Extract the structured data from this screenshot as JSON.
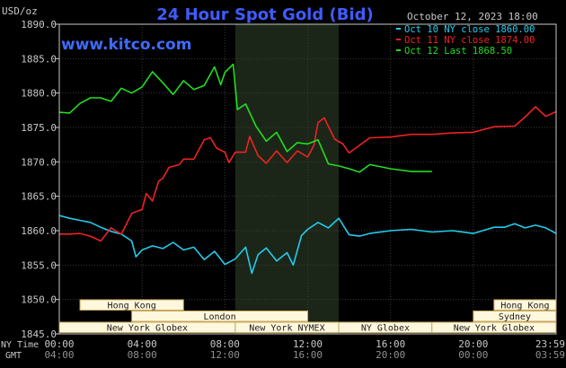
{
  "header": {
    "title": "24 Hour Spot Gold (Bid)",
    "timestamp": "October 12, 2023 18:00",
    "site": "www.kitco.com",
    "unit": "USD/oz"
  },
  "time_axis": {
    "ny_label": "NY Time",
    "gmt_label": "GMT",
    "ny_ticks": [
      "00:00",
      "04:00",
      "08:00",
      "12:00",
      "16:00",
      "20:00",
      "23:59"
    ],
    "gmt_ticks": [
      "04:00",
      "08:00",
      "12:00",
      "16:00",
      "20:00",
      "00:00",
      "03:59"
    ]
  },
  "markets": [
    {
      "name": "Hong Kong",
      "start": 1.0,
      "end": 6.0,
      "row": 0
    },
    {
      "name": "London",
      "start": 3.5,
      "end": 12.0,
      "row": 1
    },
    {
      "name": "New York Globex",
      "start": 0.0,
      "end": 8.5,
      "row": 2
    },
    {
      "name": "New York NYMEX",
      "start": 8.5,
      "end": 13.5,
      "row": 2
    },
    {
      "name": "NY Globex",
      "start": 13.5,
      "end": 18.0,
      "row": 2
    },
    {
      "name": "Hong Kong",
      "start": 21.0,
      "end": 24.0,
      "row": 0
    },
    {
      "name": "Sydney",
      "start": 20.0,
      "end": 24.0,
      "row": 1
    },
    {
      "name": "New York Globex",
      "start": 18.0,
      "end": 24.0,
      "row": 2
    }
  ],
  "colors": {
    "background": "#000000",
    "plot_bg": "#000000",
    "shade": "#1c2618",
    "grid": "#3a3a3a",
    "axis": "#c8c8c8",
    "title": "#3f5bff",
    "site": "#3f6bff",
    "market_fill": "#fff8dc",
    "market_border": "#c8a860",
    "market_text": "#1a1a1a"
  },
  "chart_data": {
    "type": "line",
    "ylim": [
      1845,
      1890
    ],
    "xlim": [
      0,
      24
    ],
    "yticks": [
      "1845.0",
      "1850.0",
      "1855.0",
      "1860.0",
      "1865.0",
      "1870.0",
      "1875.0",
      "1880.0",
      "1885.0",
      "1890.0"
    ],
    "grid": true,
    "legend_position": "top-right",
    "shaded_region": [
      8.5,
      13.5
    ],
    "series": [
      {
        "name": "Oct 10 NY close 1860.00",
        "color": "#22ccee",
        "x": [
          0,
          0.5,
          1,
          1.5,
          2,
          2.5,
          3,
          3.5,
          3.7,
          4,
          4.5,
          5,
          5.5,
          6,
          6.5,
          7,
          7.5,
          8,
          8.5,
          9,
          9.3,
          9.6,
          10,
          10.5,
          11,
          11.3,
          11.7,
          12,
          12.5,
          13,
          13.5,
          14,
          14.5,
          15,
          16,
          17,
          17.5,
          18,
          19,
          20,
          21,
          21.5,
          22,
          22.5,
          23,
          23.5,
          24
        ],
        "y": [
          1862.2,
          1861.8,
          1861.5,
          1861.2,
          1860.5,
          1859.9,
          1859.5,
          1858.5,
          1856.2,
          1857.2,
          1857.8,
          1857.4,
          1858.3,
          1857.2,
          1857.6,
          1855.8,
          1857.0,
          1855.1,
          1855.9,
          1857.6,
          1853.8,
          1856.5,
          1857.5,
          1855.6,
          1856.8,
          1855.0,
          1859.3,
          1860.2,
          1861.2,
          1860.4,
          1861.8,
          1859.4,
          1859.2,
          1859.6,
          1860.0,
          1860.2,
          1860.0,
          1859.8,
          1860.0,
          1859.6,
          1860.5,
          1860.5,
          1861.0,
          1860.4,
          1860.8,
          1860.4,
          1859.6
        ]
      },
      {
        "name": "Oct 11 NY close 1874.00",
        "color": "#ee2222",
        "x": [
          0,
          0.5,
          1,
          1.5,
          2,
          2.5,
          3,
          3.5,
          4,
          4.2,
          4.5,
          4.8,
          5,
          5.3,
          5.8,
          6,
          6.5,
          7,
          7.3,
          7.6,
          8,
          8.2,
          8.5,
          9,
          9.2,
          9.6,
          10,
          10.5,
          11,
          11.5,
          12,
          12.3,
          12.5,
          12.8,
          13.3,
          13.7,
          14,
          15,
          16,
          17,
          18,
          19,
          20,
          21,
          22,
          22.5,
          23,
          23.5,
          24
        ],
        "y": [
          1859.5,
          1859.5,
          1859.6,
          1859.2,
          1858.5,
          1860.4,
          1859.5,
          1862.5,
          1863.1,
          1865.4,
          1864.3,
          1867.2,
          1867.6,
          1869.2,
          1869.6,
          1870.4,
          1870.4,
          1873.2,
          1873.5,
          1872.0,
          1871.4,
          1869.9,
          1871.4,
          1871.4,
          1873.7,
          1870.9,
          1869.8,
          1871.6,
          1869.9,
          1871.6,
          1870.7,
          1872.4,
          1875.7,
          1876.4,
          1873.3,
          1872.6,
          1871.3,
          1873.5,
          1873.6,
          1874.0,
          1874.0,
          1874.2,
          1874.3,
          1875.1,
          1875.2,
          1876.5,
          1878.0,
          1876.6,
          1877.3
        ]
      },
      {
        "name": "Oct 12 Last 1868.50",
        "color": "#22dd22",
        "x": [
          0,
          0.5,
          1,
          1.5,
          2,
          2.5,
          3,
          3.5,
          4,
          4.5,
          5,
          5.5,
          6,
          6.5,
          7,
          7.5,
          7.8,
          8,
          8.4,
          8.6,
          9,
          9.5,
          10,
          10.5,
          11,
          11.5,
          12,
          12.5,
          13,
          13.5,
          14,
          14.5,
          15,
          16,
          17,
          18
        ],
        "y": [
          1877.2,
          1877.1,
          1878.5,
          1879.3,
          1879.3,
          1878.8,
          1880.7,
          1880.0,
          1880.9,
          1883.1,
          1881.5,
          1879.8,
          1881.8,
          1880.5,
          1881.1,
          1883.8,
          1881.2,
          1883.0,
          1884.2,
          1877.6,
          1878.4,
          1875.2,
          1873.0,
          1874.3,
          1871.5,
          1872.8,
          1872.6,
          1873.2,
          1869.7,
          1869.4,
          1869.0,
          1868.5,
          1869.6,
          1869.0,
          1868.6,
          1868.6
        ]
      }
    ]
  }
}
